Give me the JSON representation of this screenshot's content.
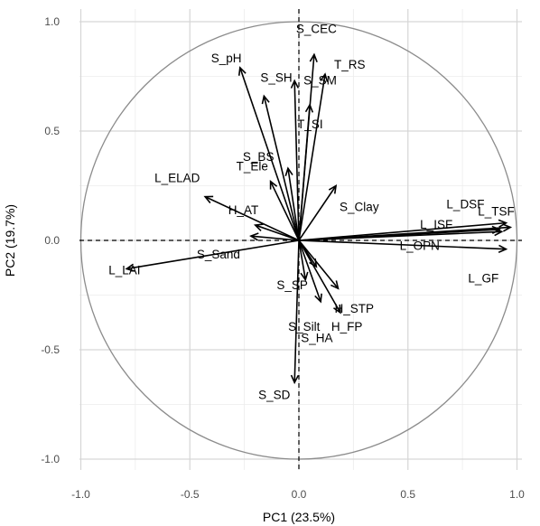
{
  "chart_data": {
    "type": "scatter",
    "subtype": "pca-variable-correlation-circle",
    "xlabel": "PC1 (23.5%)",
    "ylabel": "PC2 (19.7%)",
    "xlim": [
      -1.0,
      1.0
    ],
    "ylim": [
      -1.0,
      1.0
    ],
    "xticks": [
      -1.0,
      -0.5,
      0.0,
      0.5,
      1.0
    ],
    "yticks": [
      -1.0,
      -0.5,
      0.0,
      0.5,
      1.0
    ],
    "xtick_labels": [
      "-1.0",
      "-0.5",
      "0.0",
      "0.5",
      "1.0"
    ],
    "ytick_labels": [
      "-1.0",
      "-0.5",
      "0.0",
      "0.5",
      "1.0"
    ],
    "grid": true,
    "unit_circle": true,
    "variables": [
      {
        "name": "S_pH",
        "x": -0.27,
        "y": 0.79
      },
      {
        "name": "S_SH",
        "x": -0.16,
        "y": 0.66
      },
      {
        "name": "S_BS",
        "x": -0.05,
        "y": 0.33
      },
      {
        "name": "S_CEC",
        "x": 0.07,
        "y": 0.85
      },
      {
        "name": "T_RS",
        "x": 0.12,
        "y": 0.76
      },
      {
        "name": "S_SM",
        "x": -0.02,
        "y": 0.73
      },
      {
        "name": "T_SI",
        "x": 0.05,
        "y": 0.62
      },
      {
        "name": "T_Ele",
        "x": -0.13,
        "y": 0.27
      },
      {
        "name": "L_ELAD",
        "x": -0.43,
        "y": 0.2
      },
      {
        "name": "H_AT",
        "x": -0.2,
        "y": 0.07
      },
      {
        "name": "S_Clay",
        "x": 0.17,
        "y": 0.25
      },
      {
        "name": "L_DSF",
        "x": 0.95,
        "y": 0.08
      },
      {
        "name": "L_TSF",
        "x": 0.97,
        "y": 0.06
      },
      {
        "name": "L_ISF",
        "x": 0.92,
        "y": 0.05
      },
      {
        "name": "L_OPN",
        "x": 0.93,
        "y": 0.04
      },
      {
        "name": "L_GF",
        "x": 0.95,
        "y": -0.04
      },
      {
        "name": "S_Sand",
        "x": -0.22,
        "y": 0.02
      },
      {
        "name": "L_LAI",
        "x": -0.79,
        "y": -0.13
      },
      {
        "name": "S_SP",
        "x": 0.08,
        "y": -0.12
      },
      {
        "name": "H_STP",
        "x": 0.18,
        "y": -0.22
      },
      {
        "name": "S_Silt",
        "x": 0.1,
        "y": -0.28
      },
      {
        "name": "H_FP",
        "x": 0.19,
        "y": -0.33
      },
      {
        "name": "S_HA",
        "x": 0.03,
        "y": -0.18
      },
      {
        "name": "S_SD",
        "x": -0.02,
        "y": -0.65
      }
    ]
  }
}
